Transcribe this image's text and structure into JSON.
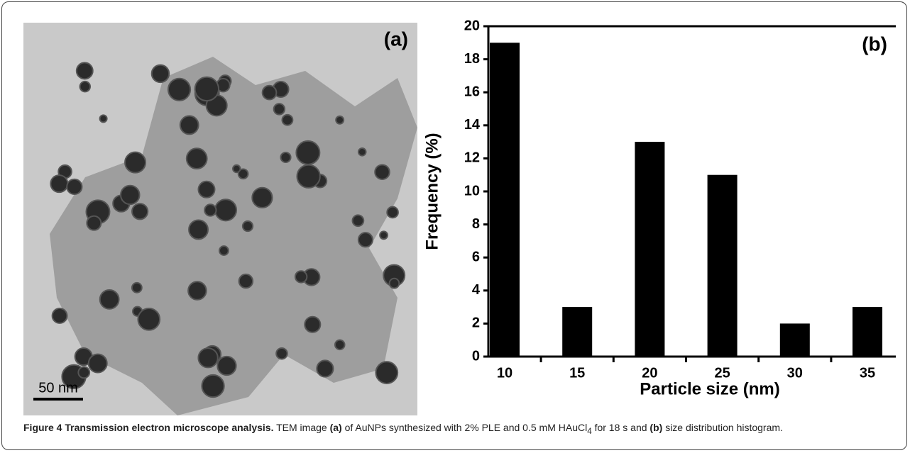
{
  "panel_a": {
    "label": "(a)",
    "scale_bar": "50 nm"
  },
  "chart_data": {
    "type": "bar",
    "panel_label": "(b)",
    "x_label": "Particle size (nm)",
    "y_label": "Frequency (%)",
    "categories": [
      "10",
      "15",
      "20",
      "25",
      "30",
      "35"
    ],
    "values": [
      19,
      3,
      13,
      11,
      2,
      3
    ],
    "color": "#000000",
    "ylim": [
      0,
      20
    ],
    "yticks": [
      0,
      2,
      4,
      6,
      8,
      10,
      12,
      14,
      16,
      18,
      20
    ],
    "grid": false
  },
  "caption": {
    "title": "Figure 4 Transmission electron microscope analysis.",
    "body_1": "TEM image",
    "panel_a": "(a)",
    "body_2": "of AuNPs synthesized with 2% PLE and 0.5 mM HAuCl",
    "subscript": "4",
    "body_3": "for 18 s and",
    "panel_b": "(b)",
    "body_4": "size distribution histogram."
  }
}
